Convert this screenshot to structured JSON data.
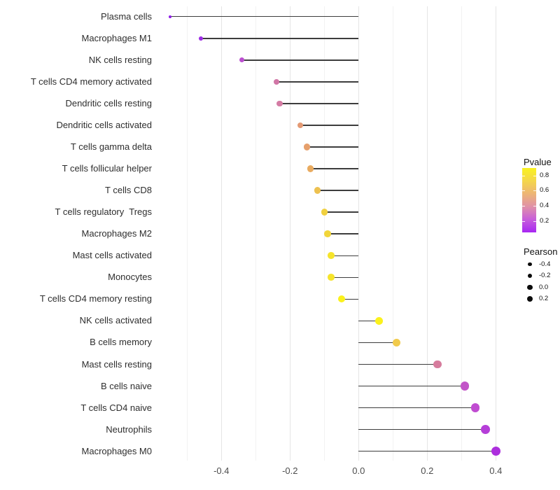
{
  "chart_data": {
    "type": "scatter",
    "variant": "horizontal-lollipop",
    "title": "",
    "xlabel": "",
    "ylabel": "",
    "xlim": [
      -0.6,
      0.46
    ],
    "x_ticks": [
      -0.4,
      -0.2,
      0.0,
      0.2,
      0.4
    ],
    "x_tick_labels": [
      "-0.4",
      "-0.2",
      "0.0",
      "0.2",
      "0.4"
    ],
    "gridline_values": [
      -0.5,
      -0.4,
      -0.3,
      -0.2,
      -0.1,
      0.0,
      0.1,
      0.2,
      0.3,
      0.4
    ],
    "grid": {
      "vertical": true,
      "horizontal": false
    },
    "legend_position": "right",
    "stem_color": "#3d3d3d",
    "categories": [
      "Plasma cells",
      "Macrophages M1",
      "NK cells resting",
      "T cells CD4 memory activated",
      "Dendritic cells resting",
      "Dendritic cells activated",
      "T cells gamma delta",
      "T cells follicular helper",
      "T cells CD8",
      "T cells regulatory  Tregs",
      "Macrophages M2",
      "Mast cells activated",
      "Monocytes",
      "T cells CD4 memory resting",
      "NK cells activated",
      "B cells memory",
      "Mast cells resting",
      "B cells naive",
      "T cells CD4 naive",
      "Neutrophils",
      "Macrophages M0"
    ],
    "series": [
      {
        "name": "Pearson",
        "values": [
          -0.55,
          -0.46,
          -0.34,
          -0.24,
          -0.23,
          -0.17,
          -0.15,
          -0.14,
          -0.12,
          -0.1,
          -0.09,
          -0.08,
          -0.08,
          -0.05,
          0.06,
          0.11,
          0.23,
          0.31,
          0.34,
          0.37,
          0.4
        ]
      }
    ],
    "point_colors": [
      "#8f1de8",
      "#9c2ce4",
      "#bb4fd0",
      "#d176a6",
      "#d47ca4",
      "#e49a74",
      "#e6a06c",
      "#e9ab60",
      "#edc150",
      "#f0d03f",
      "#f1d53a",
      "#f6e42b",
      "#f6e42b",
      "#fbf11c",
      "#fbf11c",
      "#f1ca4b",
      "#d67c9d",
      "#c254c8",
      "#c04cd1",
      "#b53ed8",
      "#ac2edd"
    ],
    "size_encoding": {
      "field": "Pearson",
      "min_value": -0.55,
      "max_value": 0.4
    },
    "color_encoding": {
      "field": "Pvalue",
      "low_color": "#a020f0",
      "high_color": "#f9f220"
    }
  },
  "legend_pvalue": {
    "title": "Pvalue",
    "tick_labels": [
      "0.8",
      "0.6",
      "0.4",
      "0.2"
    ],
    "gradient_top_to_bottom": [
      "#f9f220",
      "#f4d64c",
      "#edb575",
      "#e091a8",
      "#c75ddb",
      "#a726f2"
    ]
  },
  "legend_pearson": {
    "title": "Pearson",
    "entries": [
      {
        "label": "-0.4",
        "value": -0.4
      },
      {
        "label": "-0.2",
        "value": -0.2
      },
      {
        "label": "0.0",
        "value": 0.0
      },
      {
        "label": "0.2",
        "value": 0.2
      }
    ]
  }
}
